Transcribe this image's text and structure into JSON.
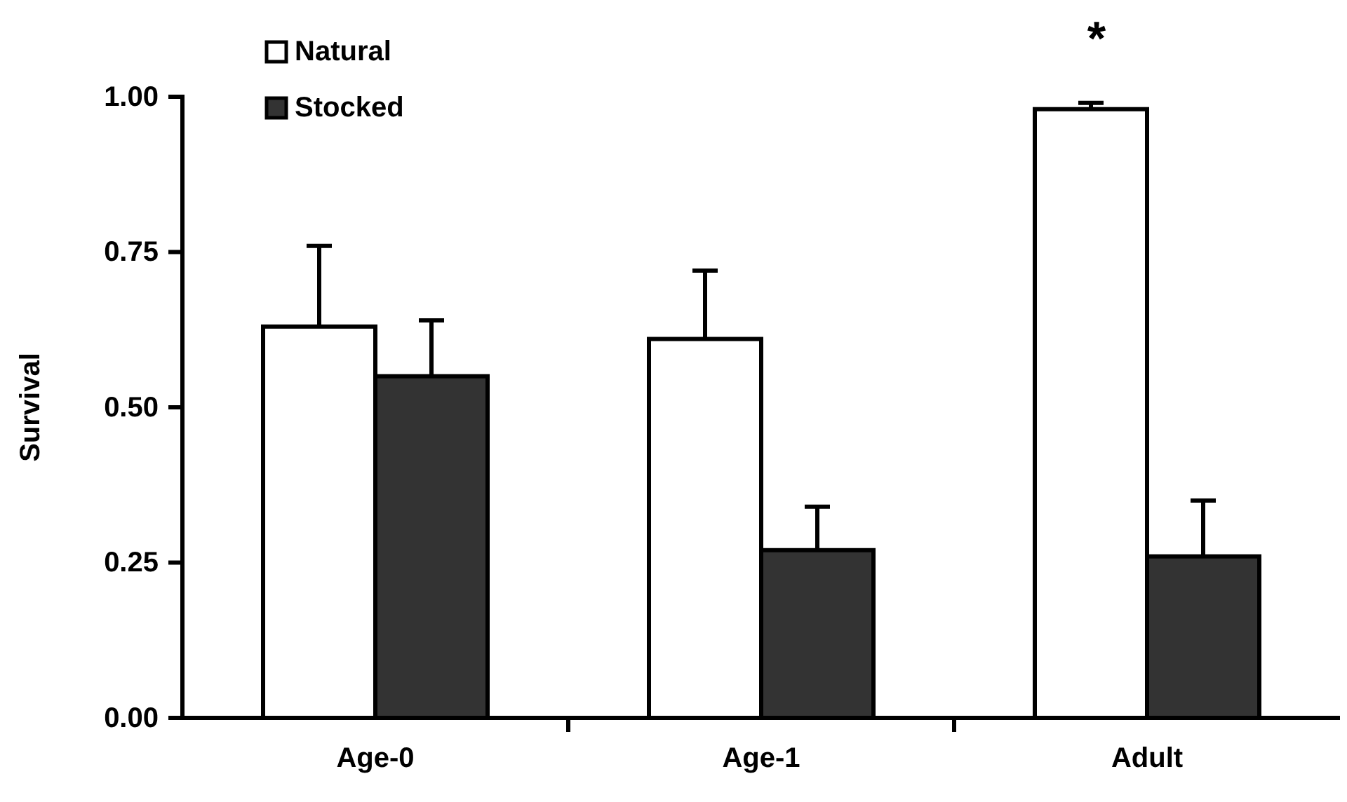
{
  "chart_data": {
    "type": "bar",
    "ylabel": "Survival",
    "categories": [
      "Age-0",
      "Age-1",
      "Adult"
    ],
    "series": [
      {
        "name": "Natural",
        "color": "#ffffff",
        "values": [
          0.63,
          0.61,
          0.98
        ],
        "errors": [
          [
            0.63,
            0.76
          ],
          [
            0.61,
            0.72
          ],
          [
            0.98,
            0.99
          ]
        ]
      },
      {
        "name": "Stocked",
        "color": "#333333",
        "values": [
          0.55,
          0.27,
          0.26
        ],
        "errors": [
          [
            0.55,
            0.64
          ],
          [
            0.27,
            0.34
          ],
          [
            0.26,
            0.35
          ]
        ]
      }
    ],
    "ylim": [
      0,
      1
    ],
    "yticks": [
      {
        "value": 0,
        "label": "0.00"
      },
      {
        "value": 0.25,
        "label": "0.25"
      },
      {
        "value": 0.5,
        "label": "0.50"
      },
      {
        "value": 0.75,
        "label": "0.75"
      },
      {
        "value": 1,
        "label": "1.00"
      }
    ],
    "grid": false,
    "legend": "top left",
    "annotations": [
      "*"
    ]
  }
}
